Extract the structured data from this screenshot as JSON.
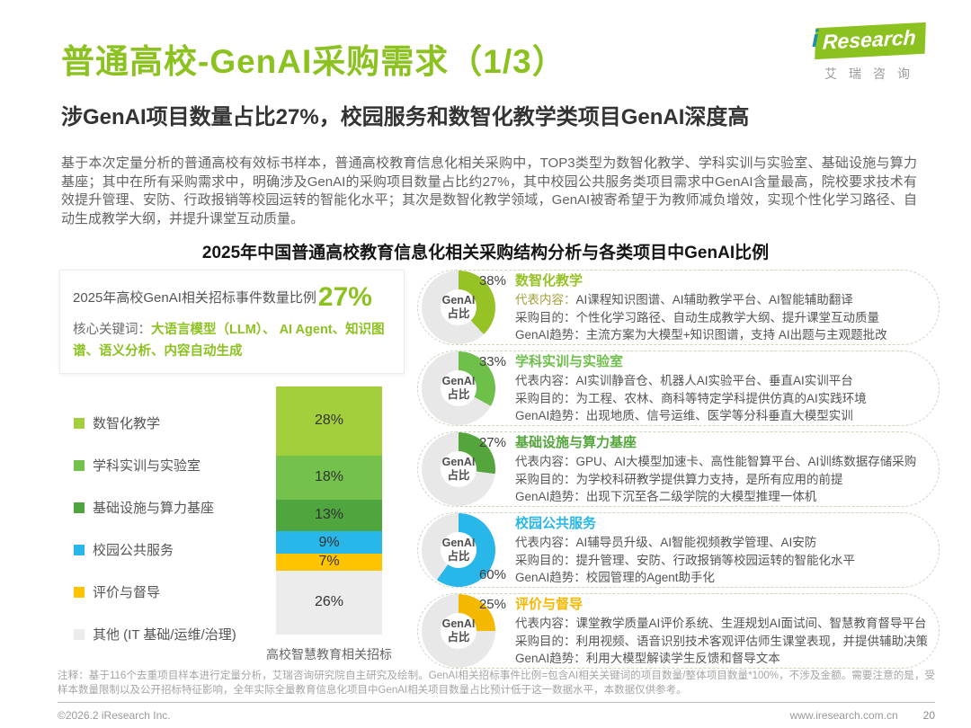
{
  "header": {
    "title": "普通高校-GenAI采购需求（1/3）",
    "subtitle": "涉GenAI项目数量占比27%，校园服务和数智化教学类项目GenAI深度高"
  },
  "logo": {
    "i": "i",
    "name": "Research",
    "cn": "艾瑞咨询"
  },
  "intro": "基于本次定量分析的普通高校有效标书样本，普通高校教育信息化相关采购中，TOP3类型为数智化教学、学科实训与实验室、基础设施与算力基座；其中在所有采购需求中，明确涉及GenAI的采购项目数量占比约27%，其中校园公共服务类项目需求中GenAI含量最高，院校要求技术有效提升管理、安防、行政报销等校园运转的智能化水平；其次是数智化教学领域，GenAI被寄希望于为教师减负增效，实现个性化学习路径、自动生成教学大纲，并提升课堂互动质量。",
  "left_panel": {
    "stat_label": "2025年高校GenAI相关招标事件数量比例",
    "stat_value": "27%",
    "keywords_label": "核心关键词：",
    "keywords": "大语言模型（LLM）、 AI Agent、知识图谱、语义分析、内容自动生成",
    "xaxis_label": "高校智慧教育相关招标"
  },
  "chart_data": [
    {
      "type": "bar",
      "stacked": true,
      "title": "2025年中国普通高校教育信息化相关采购结构分析与各类项目中GenAI比例",
      "categories": [
        "高校智慧教育相关招标"
      ],
      "series": [
        {
          "name": "数智化教学",
          "values": [
            28
          ],
          "color": "#a4cf3c"
        },
        {
          "name": "学科实训与实验室",
          "values": [
            18
          ],
          "color": "#74c14c"
        },
        {
          "name": "基础设施与算力基座",
          "values": [
            13
          ],
          "color": "#4fa53e"
        },
        {
          "name": "校园公共服务",
          "values": [
            9
          ],
          "color": "#29b7ea"
        },
        {
          "name": "评价与督导",
          "values": [
            7
          ],
          "color": "#ffc400"
        },
        {
          "name": "其他 (IT 基础/运维/治理)",
          "values": [
            26
          ],
          "color": "#ececec"
        }
      ],
      "unit": "%",
      "ylim": [
        0,
        101
      ],
      "grid": false,
      "legend_position": "left"
    },
    {
      "type": "pie",
      "subtype": "donut",
      "center_label": "GenAI占比",
      "unit": "%",
      "items": [
        {
          "label": "数智化教学",
          "value": 38,
          "color": "#97c226"
        },
        {
          "label": "学科实训与实验室",
          "value": 33,
          "color": "#6fbf4b"
        },
        {
          "label": "基础设施与算力基座",
          "value": 27,
          "color": "#54a53c"
        },
        {
          "label": "校园公共服务",
          "value": 60,
          "color": "#29b7ea"
        },
        {
          "label": "评价与督导",
          "value": 25,
          "color": "#f5b800"
        }
      ]
    }
  ],
  "donut_center_lines": [
    "GenAI",
    "占比"
  ],
  "cards": [
    {
      "title": "数智化教学",
      "accent": "#97c226",
      "percent": 38,
      "rows": [
        {
          "label": "代表内容：",
          "text": "AI课程知识图谱、AI辅助教学平台、AI智能辅助翻译",
          "highlight": true
        },
        {
          "label": "采购目的：",
          "text": "个性化学习路径、自动生成教学大纲、提升课堂互动质量"
        },
        {
          "label": "GenAI趋势：",
          "text": "主流方案为大模型+知识图谱，支持 AI出题与主观题批改"
        }
      ]
    },
    {
      "title": "学科实训与实验室",
      "accent": "#6fbf4b",
      "percent": 33,
      "rows": [
        {
          "label": "代表内容：",
          "text": "AI实训静音仓、机器人AI实验平台、垂直AI实训平台"
        },
        {
          "label": "采购目的：",
          "text": "为工程、农林、商科等特定学科提供仿真的AI实践环境"
        },
        {
          "label": "GenAI趋势：",
          "text": "出现地质、信号运维、医学等分科垂直大模型实训"
        }
      ]
    },
    {
      "title": "基础设施与算力基座",
      "accent": "#54a53c",
      "percent": 27,
      "rows": [
        {
          "label": "代表内容：",
          "text": "GPU、AI大模型加速卡、高性能智算平台、AI训练数据存储采购"
        },
        {
          "label": "采购目的：",
          "text": "为学校科研教学提供算力支持，是所有应用的前提"
        },
        {
          "label": "GenAI趋势：",
          "text": "出现下沉至各二级学院的大模型推理一体机"
        }
      ]
    },
    {
      "title": "校园公共服务",
      "accent": "#29b7ea",
      "percent": 60,
      "rows": [
        {
          "label": "代表内容：",
          "text": "AI辅导员升级、AI智能视频教学管理、AI安防"
        },
        {
          "label": "采购目的：",
          "text": "提升管理、安防、行政报销等校园运转的智能化水平"
        },
        {
          "label": "GenAI趋势：",
          "text": "校园管理的Agent助手化"
        }
      ]
    },
    {
      "title": "评价与督导",
      "accent": "#f5b800",
      "percent": 25,
      "rows": [
        {
          "label": "代表内容：",
          "text": "课堂教学质量AI评价系统、生涯规划AI面试间、智慧教育督导平台"
        },
        {
          "label": "采购目的：",
          "text": "利用视频、语音识别技术客观评估师生课堂表现，并提供辅助决策"
        },
        {
          "label": "GenAI趋势：",
          "text": "利用大模型解读学生反馈和督导文本"
        }
      ]
    }
  ],
  "footer": {
    "note": "注释：基于116个去重项目样本进行定量分析，艾瑞咨询研究院自主研究及绘制。GenAI相关招标事件比例=包含AI相关关键词的项目数量/整体项目数量*100%，不涉及金额。需要注意的是，受样本数量限制以及公开招标特征影响，全年实际全量教育信息化项目中GenAI相关项目数量占比预计低于这一数据水平，本数据仅供参考。",
    "copyright": "©2026.2 iResearch Inc.",
    "site": "www.iresearch.com.cn",
    "page": "20"
  }
}
